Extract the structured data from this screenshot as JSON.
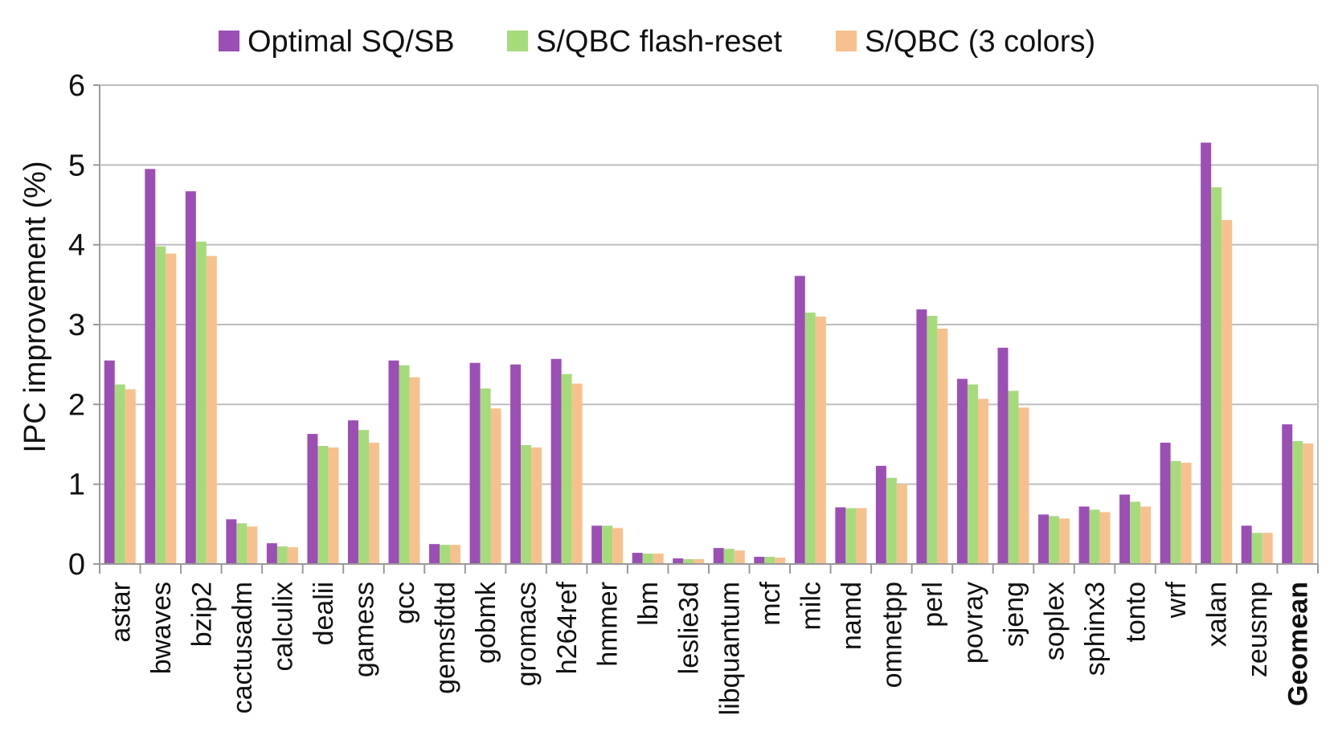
{
  "chart_data": {
    "type": "bar",
    "ylabel": "IPC improvement (%)",
    "xlabel": "",
    "ylim": [
      0,
      6
    ],
    "yticks": [
      0,
      1,
      2,
      3,
      4,
      5,
      6
    ],
    "grid": true,
    "legend_position": "top",
    "categories": [
      "astar",
      "bwaves",
      "bzip2",
      "cactusadm",
      "calculix",
      "dealii",
      "gamess",
      "gcc",
      "gemsfdtd",
      "gobmk",
      "gromacs",
      "h264ref",
      "hmmer",
      "lbm",
      "leslie3d",
      "libquantum",
      "mcf",
      "milc",
      "namd",
      "omnetpp",
      "perl",
      "povray",
      "sjeng",
      "soplex",
      "sphinx3",
      "tonto",
      "wrf",
      "xalan",
      "zeusmp",
      "Geomean"
    ],
    "bold_categories": [
      "Geomean"
    ],
    "series": [
      {
        "name": "Optimal SQ/SB",
        "color": "#9b4fb5",
        "values": [
          2.55,
          4.95,
          4.67,
          0.56,
          0.26,
          1.63,
          1.8,
          2.55,
          0.25,
          2.52,
          2.5,
          2.57,
          0.48,
          0.14,
          0.07,
          0.2,
          0.09,
          3.61,
          0.71,
          1.23,
          3.19,
          2.32,
          2.71,
          0.62,
          0.72,
          0.87,
          1.52,
          5.28,
          0.48,
          1.75
        ]
      },
      {
        "name": "S/QBC flash-reset",
        "color": "#a6db7c",
        "values": [
          2.25,
          3.98,
          4.04,
          0.51,
          0.22,
          1.48,
          1.68,
          2.49,
          0.24,
          2.2,
          1.49,
          2.38,
          0.48,
          0.13,
          0.06,
          0.19,
          0.09,
          3.15,
          0.7,
          1.08,
          3.11,
          2.25,
          2.17,
          0.6,
          0.68,
          0.78,
          1.29,
          4.72,
          0.39,
          1.54
        ]
      },
      {
        "name": "S/QBC (3 colors)",
        "color": "#f7c18f",
        "values": [
          2.19,
          3.89,
          3.86,
          0.47,
          0.21,
          1.46,
          1.52,
          2.34,
          0.24,
          1.95,
          1.46,
          2.26,
          0.45,
          0.13,
          0.06,
          0.17,
          0.08,
          3.1,
          0.7,
          1.0,
          2.95,
          2.07,
          1.96,
          0.57,
          0.65,
          0.72,
          1.27,
          4.31,
          0.39,
          1.51
        ]
      }
    ]
  }
}
